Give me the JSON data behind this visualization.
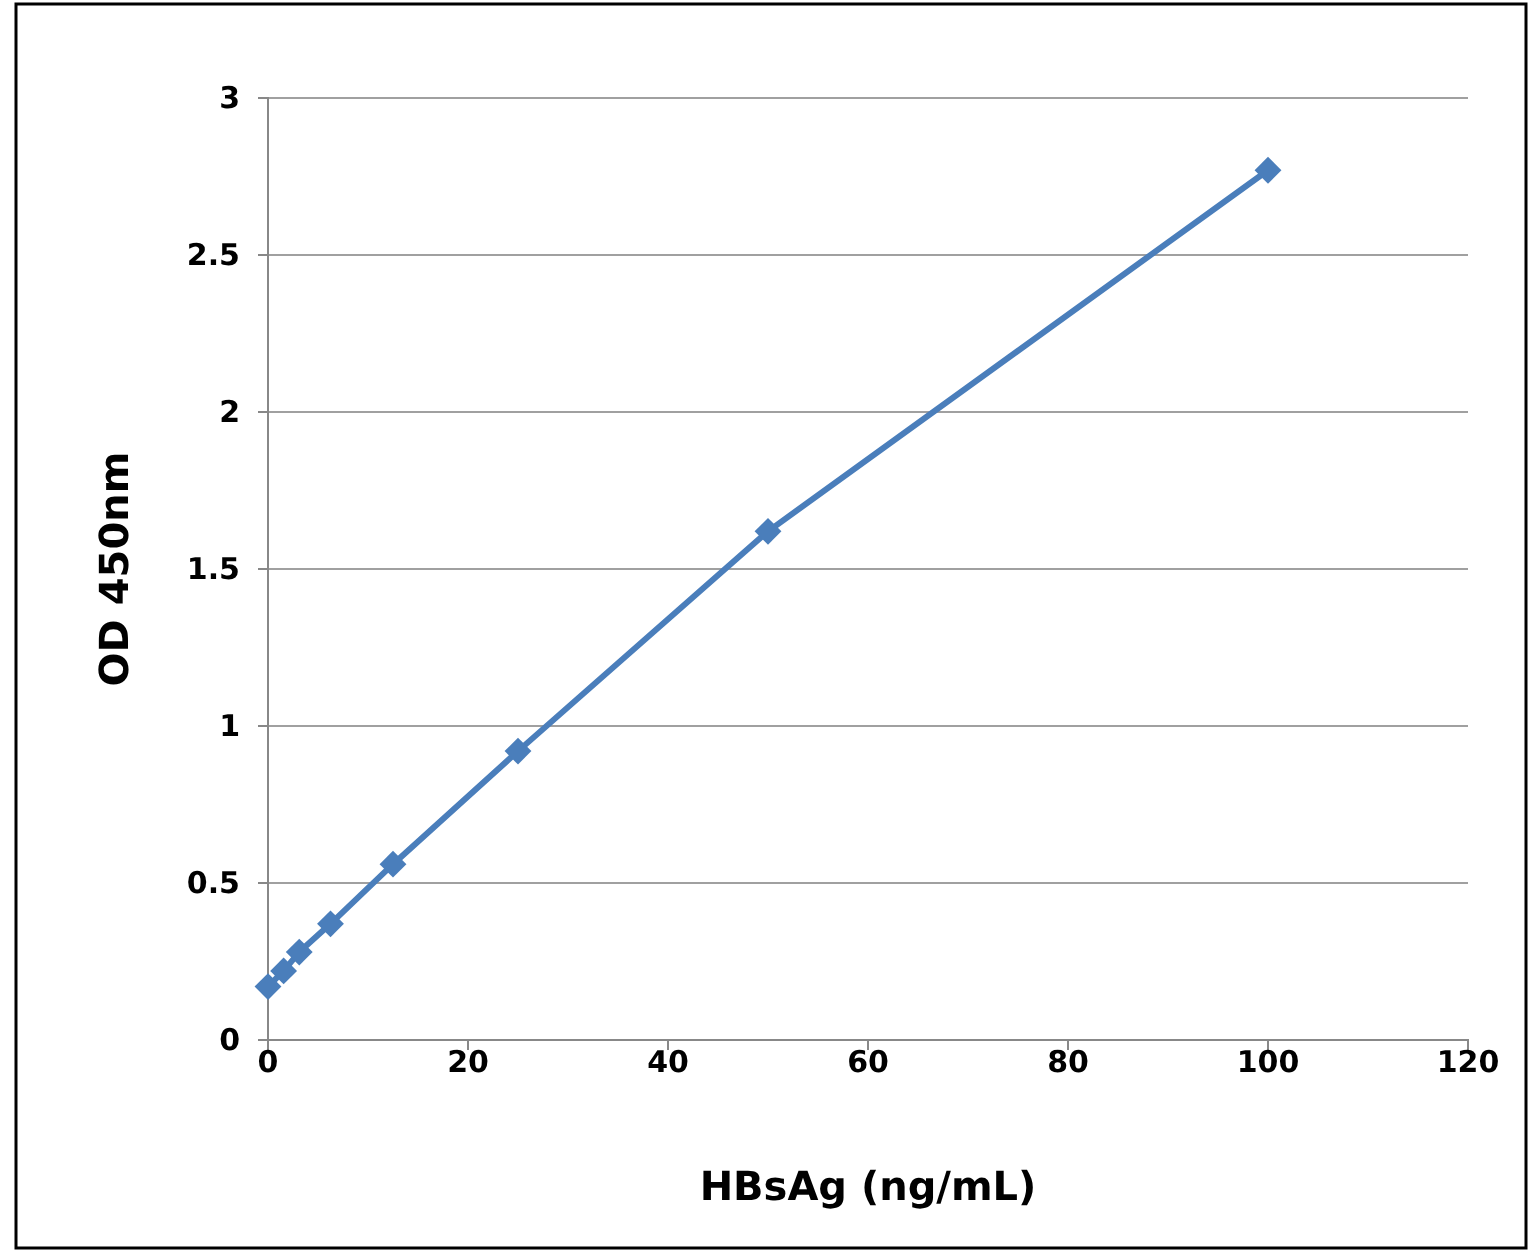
{
  "chart_data": {
    "type": "line",
    "xlabel": "HBsAg (ng/mL)",
    "ylabel": "OD 450nm",
    "x": [
      0,
      1.5625,
      3.125,
      6.25,
      12.5,
      25,
      50,
      100
    ],
    "series": [
      {
        "color": "#4a7ebb",
        "values": [
          0.17,
          0.22,
          0.28,
          0.37,
          0.56,
          0.92,
          1.62,
          2.77
        ]
      }
    ],
    "xlim": [
      0,
      120
    ],
    "xticks": [
      0,
      20,
      40,
      60,
      80,
      100,
      120
    ],
    "ylim": [
      0,
      3
    ],
    "yticks": [
      0,
      0.5,
      1,
      1.5,
      2,
      2.5,
      3
    ],
    "grid": "y",
    "marker": "diamond",
    "line_style": "solid"
  }
}
